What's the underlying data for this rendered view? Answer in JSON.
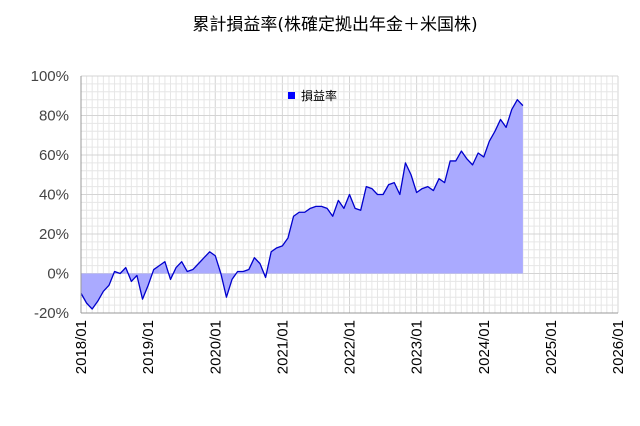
{
  "chart_data": {
    "type": "area",
    "title": "累計損益率(株確定拠出年金＋米国株)",
    "legend": {
      "label": "損益率",
      "position": "top-center",
      "color": "#0000ff"
    },
    "series": [
      {
        "name": "損益率",
        "line_color": "#0000cc",
        "fill_color": "#aaaaff",
        "points": [
          [
            "2018/01",
            -10
          ],
          [
            "2018/02",
            -15
          ],
          [
            "2018/03",
            -18
          ],
          [
            "2018/04",
            -14
          ],
          [
            "2018/05",
            -9
          ],
          [
            "2018/06",
            -6
          ],
          [
            "2018/07",
            1
          ],
          [
            "2018/08",
            0
          ],
          [
            "2018/09",
            3
          ],
          [
            "2018/10",
            -4
          ],
          [
            "2018/11",
            -1
          ],
          [
            "2018/12",
            -13
          ],
          [
            "2019/01",
            -6
          ],
          [
            "2019/02",
            2
          ],
          [
            "2019/03",
            4
          ],
          [
            "2019/04",
            6
          ],
          [
            "2019/05",
            -3
          ],
          [
            "2019/06",
            3
          ],
          [
            "2019/07",
            6
          ],
          [
            "2019/08",
            1
          ],
          [
            "2019/09",
            2
          ],
          [
            "2019/10",
            5
          ],
          [
            "2019/11",
            8
          ],
          [
            "2019/12",
            11
          ],
          [
            "2020/01",
            9
          ],
          [
            "2020/02",
            0
          ],
          [
            "2020/03",
            -12
          ],
          [
            "2020/04",
            -3
          ],
          [
            "2020/05",
            1
          ],
          [
            "2020/06",
            1
          ],
          [
            "2020/07",
            2
          ],
          [
            "2020/08",
            8
          ],
          [
            "2020/09",
            5
          ],
          [
            "2020/10",
            -2
          ],
          [
            "2020/11",
            11
          ],
          [
            "2020/12",
            13
          ],
          [
            "2021/01",
            14
          ],
          [
            "2021/02",
            18
          ],
          [
            "2021/03",
            29
          ],
          [
            "2021/04",
            31
          ],
          [
            "2021/05",
            31
          ],
          [
            "2021/06",
            33
          ],
          [
            "2021/07",
            34
          ],
          [
            "2021/08",
            34
          ],
          [
            "2021/09",
            33
          ],
          [
            "2021/10",
            29
          ],
          [
            "2021/11",
            37
          ],
          [
            "2021/12",
            33
          ],
          [
            "2022/01",
            40
          ],
          [
            "2022/02",
            33
          ],
          [
            "2022/03",
            32
          ],
          [
            "2022/04",
            44
          ],
          [
            "2022/05",
            43
          ],
          [
            "2022/06",
            40
          ],
          [
            "2022/07",
            40
          ],
          [
            "2022/08",
            45
          ],
          [
            "2022/09",
            46
          ],
          [
            "2022/10",
            40
          ],
          [
            "2022/11",
            56
          ],
          [
            "2022/12",
            50
          ],
          [
            "2023/01",
            41
          ],
          [
            "2023/02",
            43
          ],
          [
            "2023/03",
            44
          ],
          [
            "2023/04",
            42
          ],
          [
            "2023/05",
            48
          ],
          [
            "2023/06",
            46
          ],
          [
            "2023/07",
            57
          ],
          [
            "2023/08",
            57
          ],
          [
            "2023/09",
            62
          ],
          [
            "2023/10",
            58
          ],
          [
            "2023/11",
            55
          ],
          [
            "2023/12",
            61
          ],
          [
            "2024/01",
            59
          ],
          [
            "2024/02",
            67
          ],
          [
            "2024/03",
            72
          ],
          [
            "2024/04",
            78
          ],
          [
            "2024/05",
            74
          ],
          [
            "2024/06",
            83
          ],
          [
            "2024/07",
            88
          ],
          [
            "2024/08",
            85
          ]
        ]
      }
    ],
    "x_axis": {
      "type": "date",
      "range": [
        "2018/01",
        "2026/01"
      ],
      "tick_labels": [
        "2018/01",
        "2019/01",
        "2020/01",
        "2021/01",
        "2022/01",
        "2023/01",
        "2024/01",
        "2025/01",
        "2026/01"
      ],
      "minor_ticks_per_year": 12
    },
    "y_axis": {
      "range": [
        -20,
        100
      ],
      "unit": "%",
      "tick_labels": [
        "-20%",
        "0%",
        "20%",
        "40%",
        "60%",
        "80%",
        "100%"
      ],
      "tick_values": [
        -20,
        0,
        20,
        40,
        60,
        80,
        100
      ],
      "minor_step": 4
    },
    "grid": true,
    "grid_color": "#e6e6e6",
    "axis_color": "#999999"
  }
}
